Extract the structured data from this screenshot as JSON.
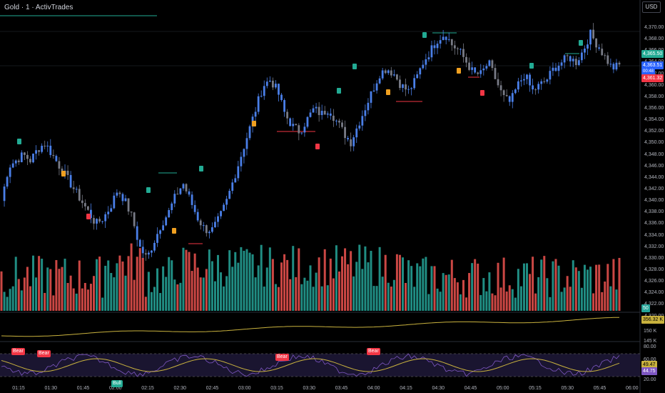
{
  "header": {
    "symbol_title": "Gold · 1 · ActivTrades",
    "currency_button": "USD"
  },
  "price_axis": {
    "ticks": [
      "4,370.00",
      "4,368.00",
      "4,366.00",
      "4,364.00",
      "4,362.00",
      "4,360.00",
      "4,358.00",
      "4,356.00",
      "4,354.00",
      "4,352.00",
      "4,350.00",
      "4,348.00",
      "4,346.00",
      "4,344.00",
      "4,342.00",
      "4,340.00",
      "4,338.00",
      "4,336.00",
      "4,334.00",
      "4,332.00",
      "4,330.00",
      "4,328.00",
      "4,326.00",
      "4,324.00",
      "4,322.00",
      "4,320.00"
    ],
    "labels": {
      "green_level": "4,365.50",
      "last_price": "4,363.51",
      "countdown": "00:48",
      "red_level": "4,361.32",
      "volume": "50"
    }
  },
  "indicator_axis": {
    "volume_ma_value": "356.32 K",
    "volume_ma_ticks": [
      "150 K",
      "145 K"
    ],
    "ticks_upper": "350 K",
    "rsi_ticks": [
      "80.00",
      "60.00",
      "20.00"
    ],
    "rsi_value": "49.47",
    "rsi_ma_value": "44.75"
  },
  "time_axis": [
    "01:15",
    "01:30",
    "01:45",
    "02:00",
    "02:15",
    "02:30",
    "02:45",
    "03:00",
    "03:15",
    "03:30",
    "03:45",
    "04:00",
    "04:15",
    "04:30",
    "04:45",
    "05:00",
    "05:15",
    "05:30",
    "05:45",
    "06:00"
  ],
  "signals": {
    "rsi_bear_labels": [
      "Bear",
      "Bear",
      "Bear",
      "Bear"
    ],
    "rsi_bull_label": "Bull"
  },
  "colors": {
    "up": "#4a7fe8",
    "neutral": "#787b86",
    "vol_up": "#26a69a",
    "vol_down": "#ef5350",
    "rsi": "#7e57c2",
    "rsi_ma": "#c9b23e",
    "level_green": "#22ab94",
    "level_red": "#f23645"
  },
  "chart_data": {
    "type": "candlestick",
    "time_start": "01:10",
    "interval": "1m",
    "price_ylim": [
      4320,
      4371
    ],
    "closes_sketch": [
      4340,
      4346,
      4347,
      4348,
      4347,
      4349,
      4350,
      4348,
      4346,
      4344,
      4342,
      4340,
      4338,
      4336,
      4337,
      4339,
      4342,
      4340,
      4337,
      4332,
      4330,
      4333,
      4336,
      4338,
      4341,
      4343,
      4340,
      4337,
      4335,
      4335,
      4337,
      4340,
      4344,
      4348,
      4352,
      4356,
      4360,
      4361,
      4359,
      4355,
      4353,
      4352,
      4354,
      4356,
      4355,
      4356,
      4354,
      4352,
      4350,
      4353,
      4356,
      4359,
      4362,
      4363,
      4362,
      4360,
      4359,
      4361,
      4364,
      4366,
      4368,
      4369,
      4367,
      4366,
      4364,
      4362,
      4362,
      4364,
      4361,
      4358,
      4357,
      4360,
      4362,
      4359,
      4360,
      4361,
      4363,
      4364,
      4365,
      4364,
      4366,
      4369,
      4367,
      4365,
      4363,
      4363.5
    ],
    "rsi_ylim": [
      20,
      80
    ],
    "rsi_levels": [
      60,
      40
    ]
  }
}
